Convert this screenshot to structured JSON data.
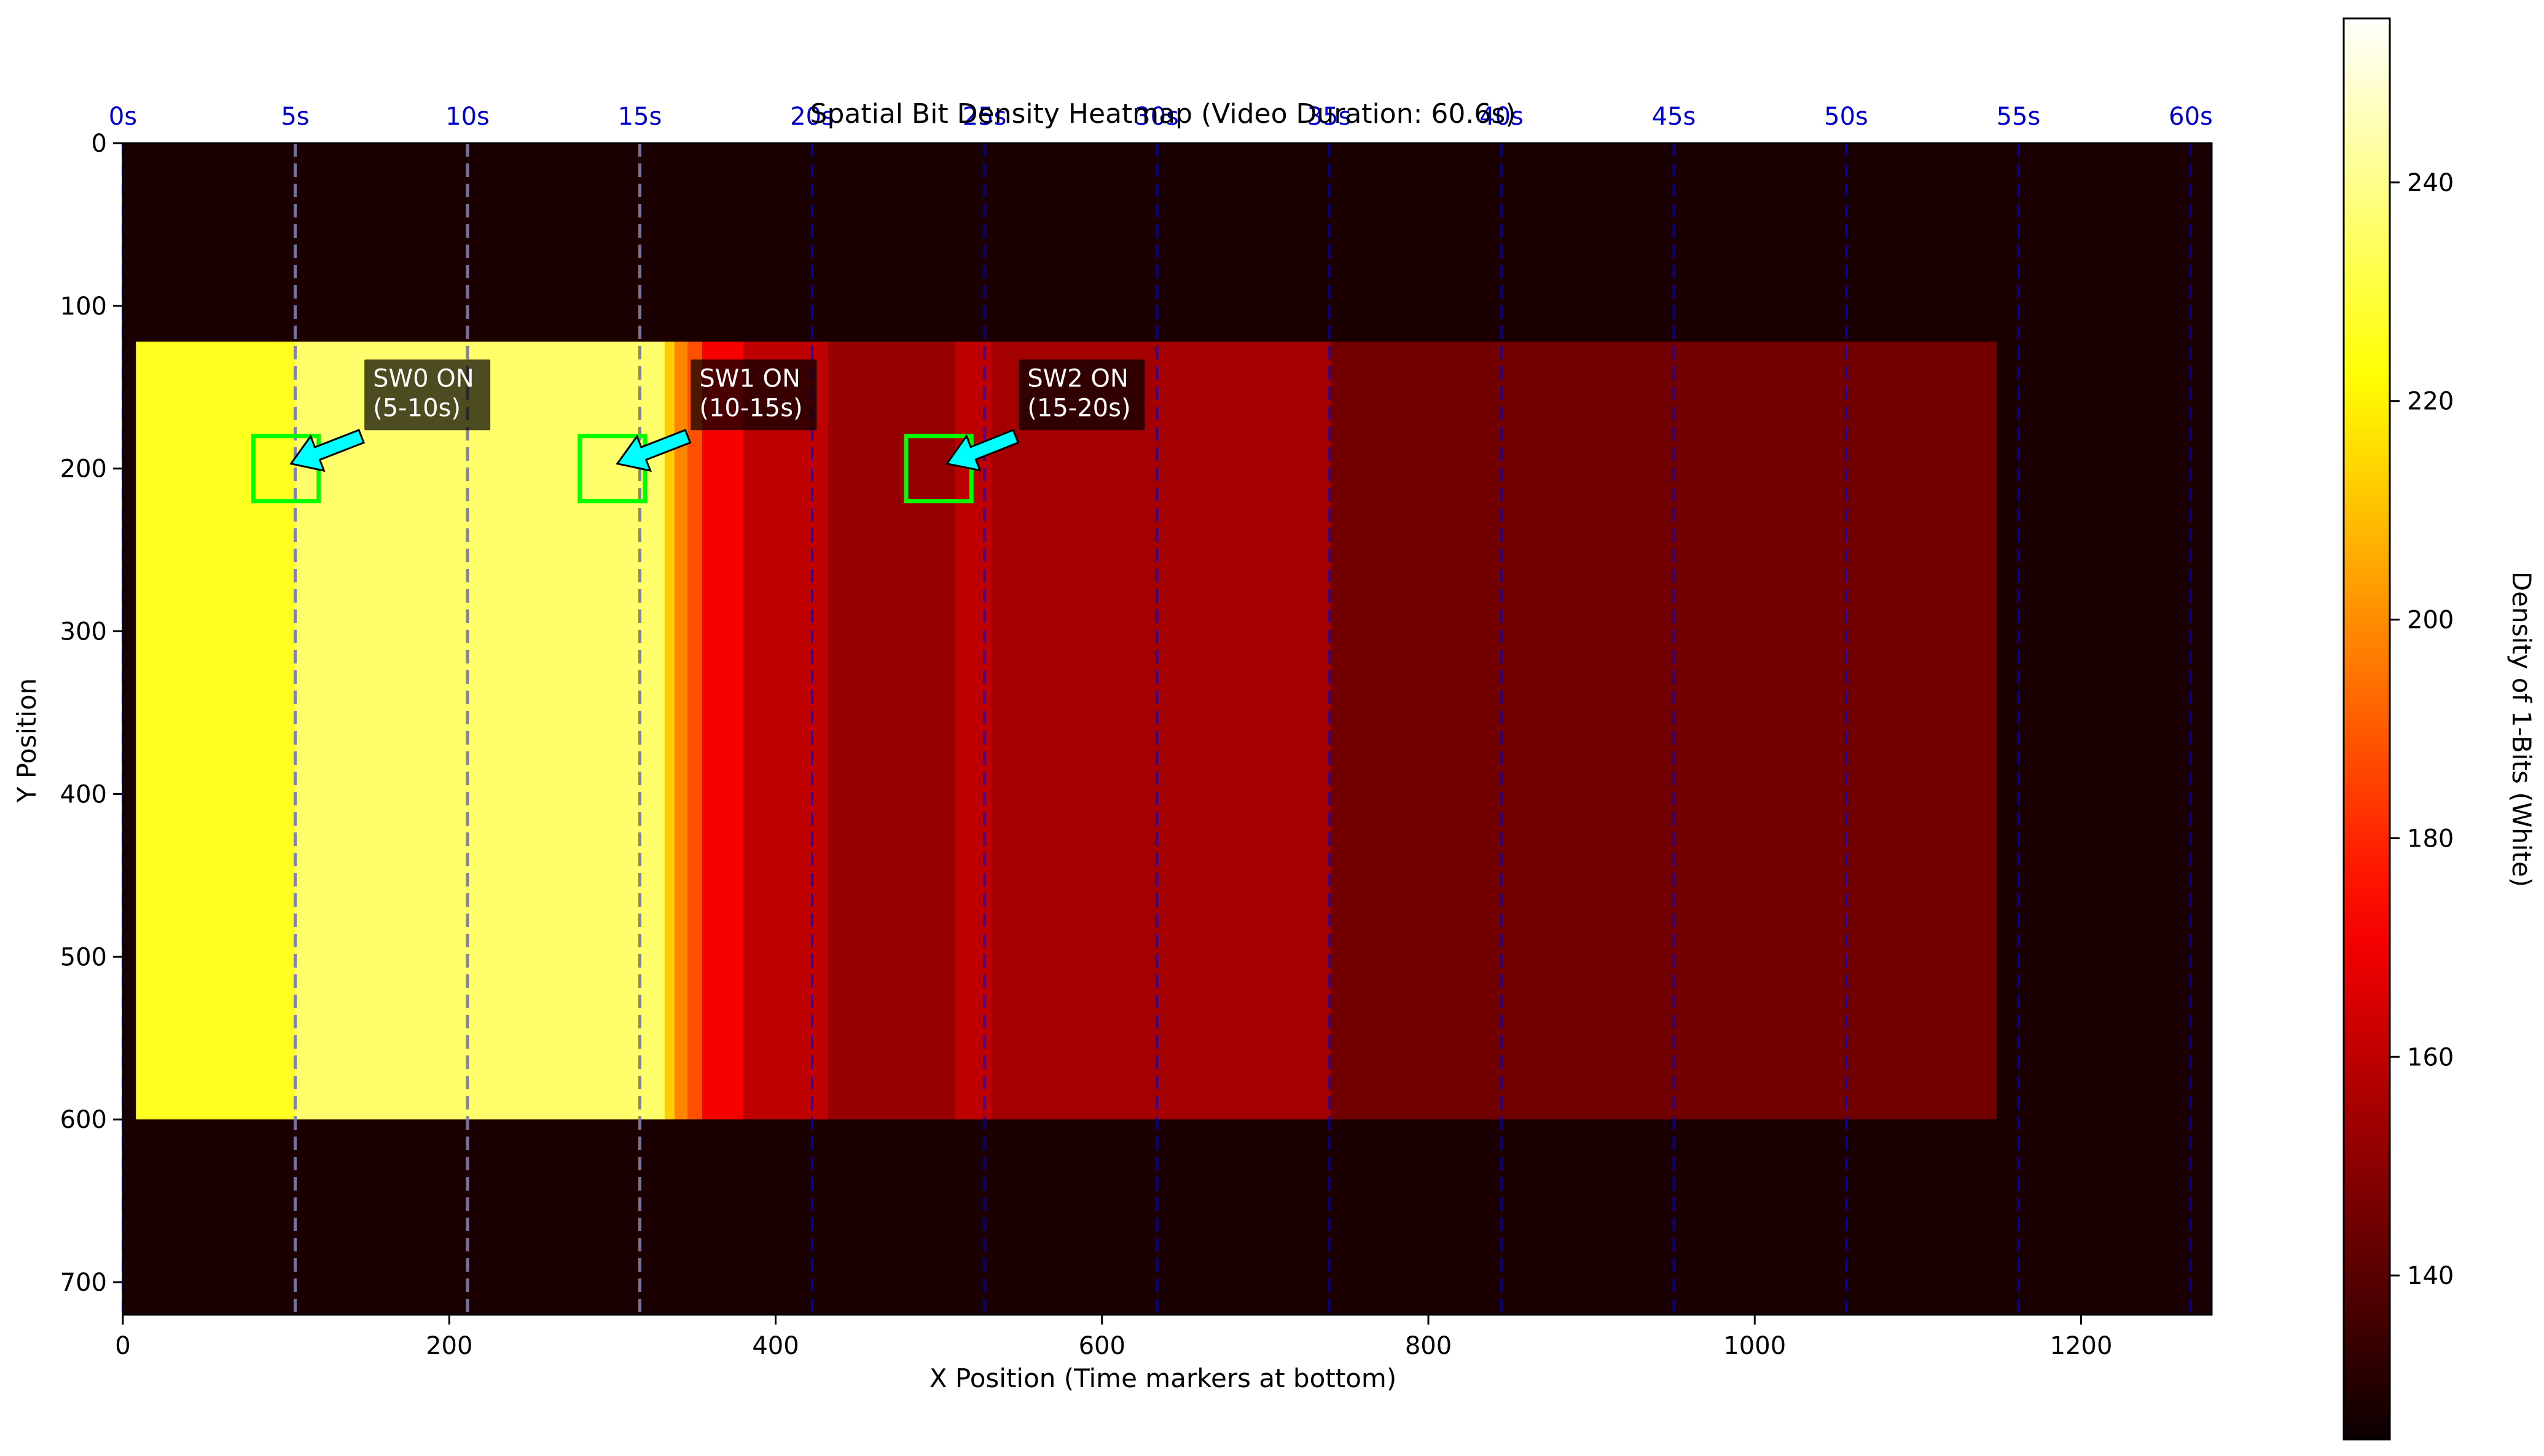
{
  "chart_data": {
    "type": "heatmap",
    "title": "Spatial Bit Density Heatmap (Video Duration: 60.6s)",
    "xlabel": "X Position (Time markers at bottom)",
    "ylabel": "Y Position",
    "xlim": [
      0,
      1280
    ],
    "ylim": [
      720,
      0
    ],
    "x_ticks": [
      0,
      200,
      400,
      600,
      800,
      1000,
      1200
    ],
    "y_ticks": [
      0,
      100,
      200,
      300,
      400,
      500,
      600,
      700
    ],
    "colormap": "hot",
    "colorbar": {
      "label": "Density of 1-Bits (White)",
      "vmin": 125,
      "vmax": 255,
      "ticks": [
        140,
        160,
        180,
        200,
        220,
        240
      ]
    },
    "background_value": 128,
    "content_region": {
      "y_top": 122,
      "y_bottom": 600,
      "x_end": 1148
    },
    "columns": [
      {
        "x0": 8,
        "x1": 105,
        "value": 226
      },
      {
        "x0": 105,
        "x1": 332,
        "value": 236
      },
      {
        "x0": 332,
        "x1": 338,
        "value": 212
      },
      {
        "x0": 338,
        "x1": 346,
        "value": 198
      },
      {
        "x0": 346,
        "x1": 355,
        "value": 188
      },
      {
        "x0": 355,
        "x1": 380,
        "value": 171
      },
      {
        "x0": 380,
        "x1": 432,
        "value": 160
      },
      {
        "x0": 432,
        "x1": 510,
        "value": 152
      },
      {
        "x0": 510,
        "x1": 532,
        "value": 160
      },
      {
        "x0": 532,
        "x1": 740,
        "value": 155
      },
      {
        "x0": 740,
        "x1": 1148,
        "value": 145
      }
    ],
    "time_markers": {
      "labels": [
        "0s",
        "5s",
        "10s",
        "15s",
        "20s",
        "25s",
        "30s",
        "35s",
        "40s",
        "45s",
        "50s",
        "55s",
        "60s"
      ],
      "x": [
        0,
        105.6,
        211.2,
        316.8,
        422.4,
        528,
        633.6,
        739.2,
        844.8,
        950.4,
        1056,
        1161.6,
        1267.2
      ],
      "color": "#0000cc"
    },
    "switch_markers_x": [
      105.6,
      211.2,
      316.8
    ],
    "switch_marker_color": "#7a7aa8",
    "annotations": [
      {
        "text_lines": [
          "SW0 ON",
          "(5-10s)"
        ],
        "text_x": 148,
        "text_y": 133,
        "box_x0": 80,
        "box_x1": 120,
        "box_y0": 180,
        "box_y1": 220,
        "arrow_tip": [
          103,
          197
        ]
      },
      {
        "text_lines": [
          "SW1 ON",
          "(10-15s)"
        ],
        "text_x": 348,
        "text_y": 133,
        "box_x0": 280,
        "box_x1": 320,
        "box_y0": 180,
        "box_y1": 220,
        "arrow_tip": [
          303,
          197
        ]
      },
      {
        "text_lines": [
          "SW2 ON",
          "(15-20s)"
        ],
        "text_x": 549,
        "text_y": 133,
        "box_x0": 480,
        "box_x1": 520,
        "box_y0": 180,
        "box_y1": 220,
        "arrow_tip": [
          505,
          197
        ]
      }
    ],
    "box_color": "#00ff00",
    "arrow_color": "#00ffff"
  }
}
